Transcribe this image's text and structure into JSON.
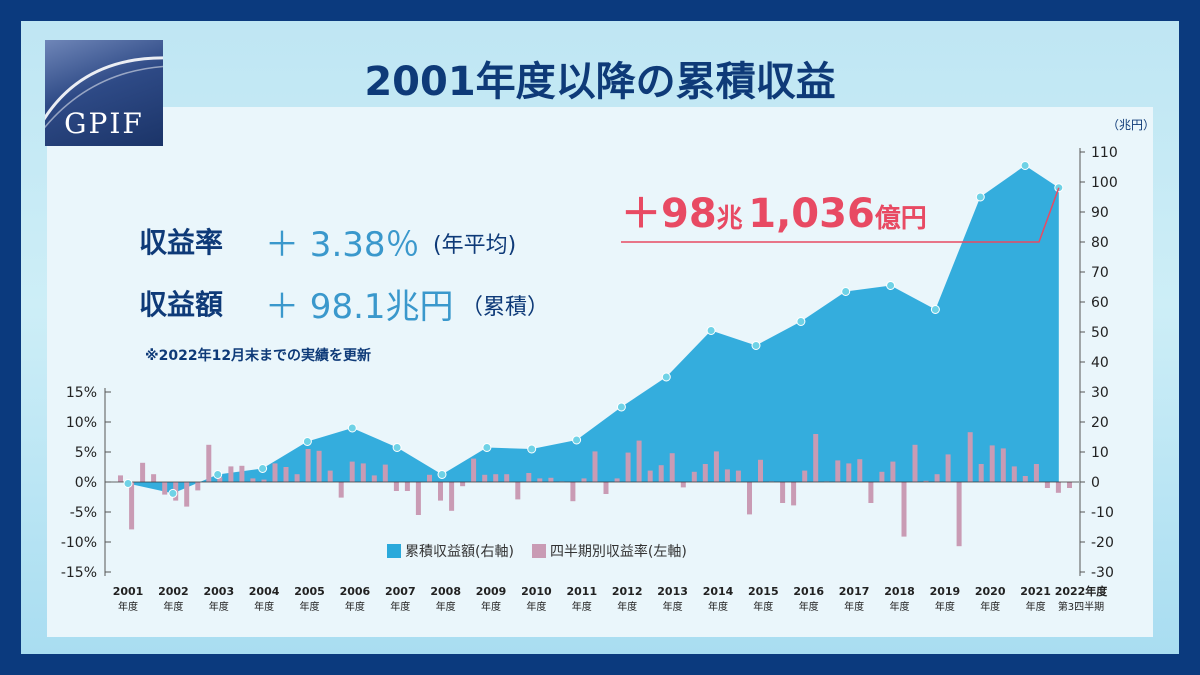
{
  "logo": {
    "text": "GPIF"
  },
  "title": "2001年度以降の累積収益",
  "stats": {
    "rate_label": "収益率",
    "rate_value": "＋ 3.38％",
    "rate_note": "(年平均)",
    "amount_label": "収益額",
    "amount_value": "＋ 98.1兆円",
    "amount_note": "（累積）",
    "update_note": "※2022年12月末までの実績を更新"
  },
  "callout": {
    "prefix": "＋98",
    "unit1": "兆",
    "amount": "1,036",
    "unit2": "億円"
  },
  "colors": {
    "area": "#2aa9db",
    "bar": "#c99bb4",
    "point": "#6fd2e6",
    "callout": "#e84a63",
    "text": "#0e3a78"
  },
  "chart_data": {
    "type": "bar+area",
    "right_axis": {
      "unit": "（兆円）",
      "range": [
        -30,
        110
      ],
      "ticks": [
        110,
        100,
        90,
        80,
        70,
        60,
        50,
        40,
        30,
        20,
        10,
        0,
        -10,
        -20,
        -30
      ]
    },
    "left_axis": {
      "range": [
        -15,
        15
      ],
      "ticks": [
        "15%",
        "10%",
        "5%",
        "0%",
        "-5%",
        "-10%",
        "-15%"
      ]
    },
    "x_labels": [
      {
        "year": "2001",
        "suffix": "年度"
      },
      {
        "year": "2002",
        "suffix": "年度"
      },
      {
        "year": "2003",
        "suffix": "年度"
      },
      {
        "year": "2004",
        "suffix": "年度"
      },
      {
        "year": "2005",
        "suffix": "年度"
      },
      {
        "year": "2006",
        "suffix": "年度"
      },
      {
        "year": "2007",
        "suffix": "年度"
      },
      {
        "year": "2008",
        "suffix": "年度"
      },
      {
        "year": "2009",
        "suffix": "年度"
      },
      {
        "year": "2010",
        "suffix": "年度"
      },
      {
        "year": "2011",
        "suffix": "年度"
      },
      {
        "year": "2012",
        "suffix": "年度"
      },
      {
        "year": "2013",
        "suffix": "年度"
      },
      {
        "year": "2014",
        "suffix": "年度"
      },
      {
        "year": "2015",
        "suffix": "年度"
      },
      {
        "year": "2016",
        "suffix": "年度"
      },
      {
        "year": "2017",
        "suffix": "年度"
      },
      {
        "year": "2018",
        "suffix": "年度"
      },
      {
        "year": "2019",
        "suffix": "年度"
      },
      {
        "year": "2020",
        "suffix": "年度"
      },
      {
        "year": "2021",
        "suffix": "年度"
      },
      {
        "year": "2022年度",
        "suffix": "第3四半期"
      }
    ],
    "legend": [
      {
        "name": "累積収益額(右軸)",
        "color": "#2aa9db"
      },
      {
        "name": "四半期別収益率(左軸)",
        "color": "#c99bb4"
      }
    ],
    "cumulative": [
      [
        2001.0,
        -0.5
      ],
      [
        2002.0,
        -3.8
      ],
      [
        2003.0,
        2.5
      ],
      [
        2004.0,
        4.5
      ],
      [
        2005.0,
        13.5
      ],
      [
        2006.0,
        18.0
      ],
      [
        2007.0,
        11.5
      ],
      [
        2008.0,
        2.5
      ],
      [
        2009.0,
        11.5
      ],
      [
        2010.0,
        11.0
      ],
      [
        2011.0,
        14.0
      ],
      [
        2012.0,
        25.0
      ],
      [
        2013.0,
        35.0
      ],
      [
        2014.0,
        50.5
      ],
      [
        2015.0,
        45.5
      ],
      [
        2016.0,
        53.5
      ],
      [
        2017.0,
        63.5
      ],
      [
        2018.0,
        65.5
      ],
      [
        2019.0,
        57.5
      ],
      [
        2020.0,
        95.0
      ],
      [
        2021.0,
        105.5
      ],
      [
        2021.75,
        98.1
      ]
    ],
    "quarterly_returns": [
      1.1,
      -7.9,
      3.2,
      1.3,
      -2.1,
      -3.1,
      -4.1,
      -1.4,
      6.2,
      0.8,
      2.6,
      2.7,
      0.6,
      0.4,
      3.1,
      2.5,
      1.3,
      5.5,
      5.2,
      1.9,
      -2.6,
      3.4,
      3.1,
      1.1,
      2.9,
      -1.5,
      -1.5,
      -5.5,
      1.2,
      -3.1,
      -4.8,
      -0.7,
      3.9,
      1.2,
      1.3,
      1.3,
      -2.9,
      1.5,
      0.6,
      0.7,
      0.1,
      -3.2,
      0.6,
      5.1,
      -2.0,
      0.6,
      4.9,
      6.9,
      1.9,
      2.8,
      4.8,
      -0.9,
      1.7,
      3.0,
      5.1,
      2.1,
      1.9,
      -5.4,
      3.7,
      0.1,
      -3.5,
      -3.9,
      1.9,
      8.0,
      0.1,
      3.6,
      3.1,
      3.8,
      -3.5,
      1.7,
      3.4,
      -9.1,
      6.2,
      0.2,
      1.3,
      4.6,
      -10.7,
      8.3,
      3.0,
      6.1,
      5.6,
      2.6,
      1.0,
      3.0,
      -1.0,
      -1.8,
      -1.0
    ]
  }
}
